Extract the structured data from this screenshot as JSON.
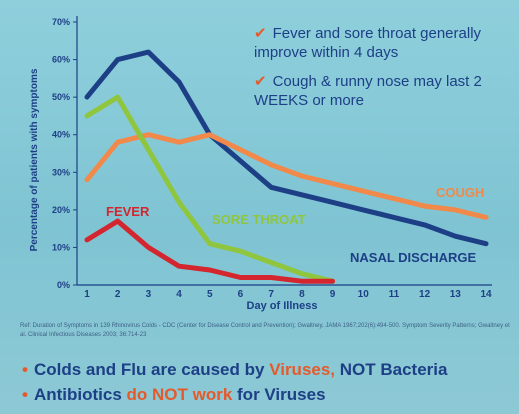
{
  "chart_data": {
    "type": "line",
    "xlabel": "Day of Illness",
    "ylabel": "Percentage of patients with symptoms",
    "x": [
      1,
      2,
      3,
      4,
      5,
      6,
      7,
      8,
      9,
      10,
      11,
      12,
      13,
      14
    ],
    "xlim": [
      1,
      14
    ],
    "ylim": [
      0,
      70
    ],
    "yticks": [
      "0%",
      "10%",
      "20%",
      "30%",
      "40%",
      "50%",
      "60%",
      "70%"
    ],
    "grid": false,
    "legend": "inline labels near each line",
    "series": [
      {
        "name": "NASAL DISCHARGE",
        "color": "#1d3f86",
        "x": [
          1,
          2,
          3,
          4,
          5,
          6,
          7,
          8,
          9,
          10,
          11,
          12,
          13,
          14
        ],
        "values": [
          50,
          60,
          62,
          54,
          40,
          33,
          26,
          24,
          22,
          20,
          18,
          16,
          13,
          11
        ]
      },
      {
        "name": "COUGH",
        "color": "#f0894a",
        "x": [
          1,
          2,
          3,
          4,
          5,
          6,
          7,
          8,
          9,
          10,
          11,
          12,
          13,
          14
        ],
        "values": [
          28,
          38,
          40,
          38,
          40,
          36,
          32,
          29,
          27,
          25,
          23,
          21,
          20,
          18
        ]
      },
      {
        "name": "SORE THROAT",
        "color": "#8fc63e",
        "x": [
          1,
          2,
          3,
          4,
          5,
          6,
          7,
          8,
          9
        ],
        "values": [
          45,
          50,
          36,
          22,
          11,
          9,
          6,
          3,
          1
        ]
      },
      {
        "name": "FEVER",
        "color": "#d3262e",
        "x": [
          1,
          2,
          3,
          4,
          5,
          6,
          7,
          8,
          9
        ],
        "values": [
          12,
          17,
          10,
          5,
          4,
          2,
          2,
          1,
          1
        ]
      }
    ]
  },
  "notes": [
    {
      "check": "✔",
      "text": "Fever and sore throat generally improve within 4 days"
    },
    {
      "check": "✔",
      "text": "Cough & runny nose may last 2 WEEKS or more"
    }
  ],
  "reference": "Ref: Duration of Symptoms in 139 Rhinovirus Colds - CDC (Center for Disease Control and Prevention); Gwaltney, JAMA 1967;202(6):494-500. Symptom Severity Patterns; Gwaltney et al. Clinical Infectious Diseases 2003; 36:714-23",
  "bullets": [
    {
      "dot": "•",
      "pre": "Colds and Flu are caused by ",
      "hl": "Viruses,",
      "post": " NOT Bacteria"
    },
    {
      "dot": "•",
      "pre": "Antibiotics ",
      "hl": "do NOT work",
      "post": " for Viruses"
    }
  ]
}
